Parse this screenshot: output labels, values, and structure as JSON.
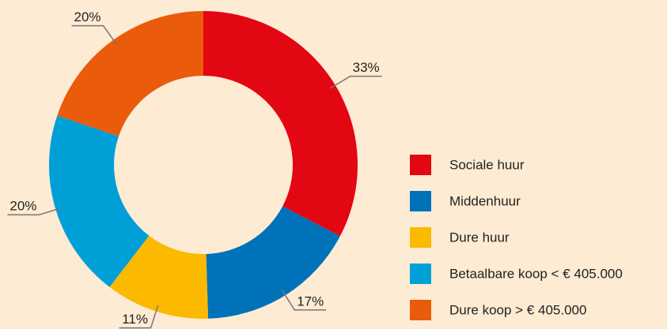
{
  "chart_data": {
    "type": "donut",
    "categories": [
      "Sociale huur",
      "Middenhuur",
      "Dure huur",
      "Betaalbare koop < € 405.000",
      "Dure koop > € 405.000"
    ],
    "values": [
      33,
      17,
      11,
      20,
      20
    ],
    "value_labels": [
      "33%",
      "17%",
      "11%",
      "20%",
      "20%"
    ],
    "colors": [
      "#e30613",
      "#0072b9",
      "#fbb900",
      "#00a0d6",
      "#ea5b0c"
    ],
    "legend": "right"
  }
}
